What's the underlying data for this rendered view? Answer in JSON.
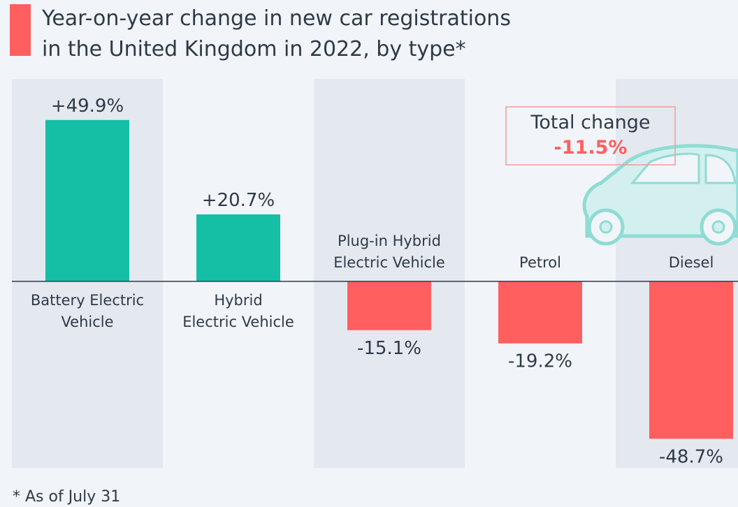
{
  "chart_data": {
    "type": "bar",
    "title": "Year-on-year change in new car registrations\nin the United Kingdom in 2022, by type*",
    "categories": [
      "Battery Electric\nVehicle",
      "Hybrid\nElectric Vehicle",
      "Plug-in Hybrid\nElectric Vehicle",
      "Petrol",
      "Diesel"
    ],
    "values": [
      49.9,
      20.7,
      -15.1,
      -19.2,
      -48.7
    ],
    "value_labels": [
      "+49.9%",
      "+20.7%",
      "-15.1%",
      "-19.2%",
      "-48.7%"
    ],
    "colors": [
      "#14bfa6",
      "#14bfa6",
      "#ff5f5f",
      "#ff5f5f",
      "#ff5f5f"
    ],
    "ylim": [
      -57.7,
      62.6
    ],
    "annotation": {
      "label": "Total change",
      "value_label": "-11.5%"
    },
    "footnote": "* As of July 31"
  }
}
